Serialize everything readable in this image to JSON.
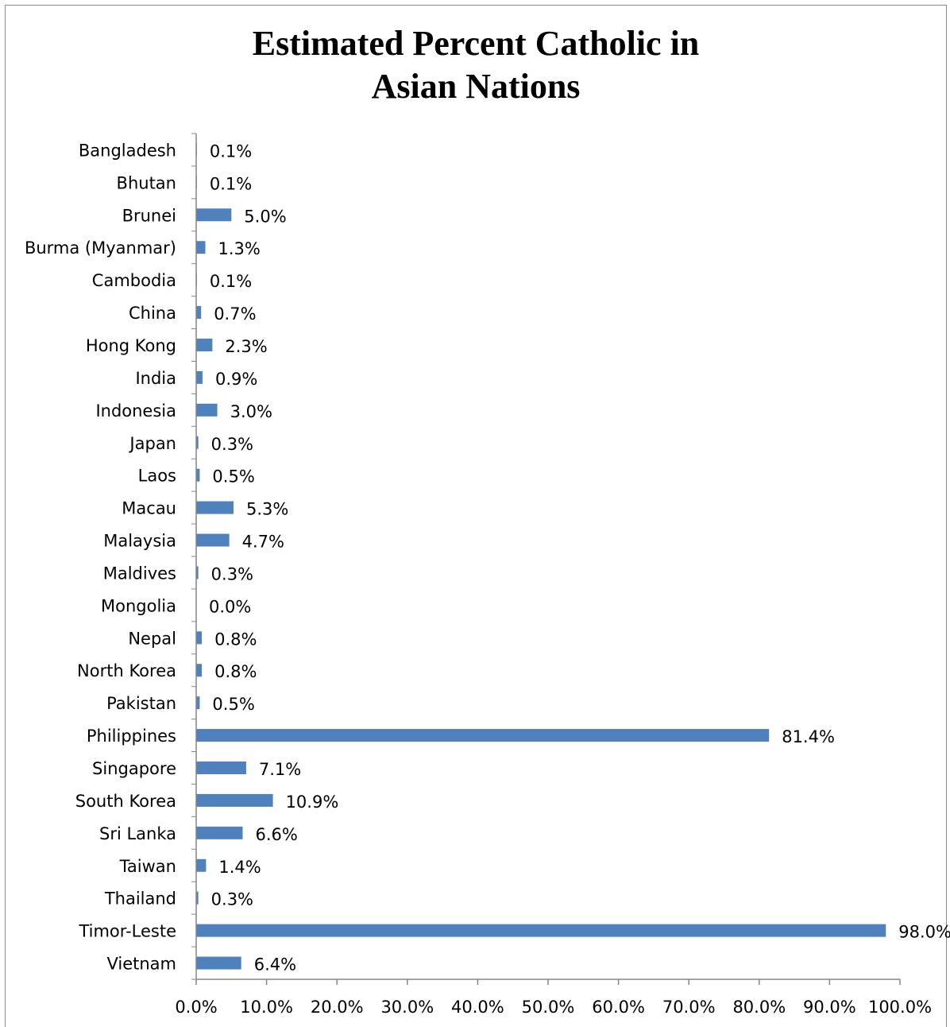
{
  "chart_data": {
    "type": "bar",
    "orientation": "horizontal",
    "title": "Estimated Percent Catholic in Asian Nations",
    "title_lines": [
      "Estimated Percent Catholic in",
      "Asian Nations"
    ],
    "xlabel": "",
    "ylabel": "",
    "xlim": [
      0,
      100
    ],
    "grid": false,
    "legend": "none",
    "bar_color": "#4F81BD",
    "categories": [
      "Bangladesh",
      "Bhutan",
      "Brunei",
      "Burma (Myanmar)",
      "Cambodia",
      "China",
      "Hong Kong",
      "India",
      "Indonesia",
      "Japan",
      "Laos",
      "Macau",
      "Malaysia",
      "Maldives",
      "Mongolia",
      "Nepal",
      "North Korea",
      "Pakistan",
      "Philippines",
      "Singapore",
      "South Korea",
      "Sri Lanka",
      "Taiwan",
      "Thailand",
      "Timor-Leste",
      "Vietnam"
    ],
    "values": [
      0.1,
      0.1,
      5.0,
      1.3,
      0.1,
      0.7,
      2.3,
      0.9,
      3.0,
      0.3,
      0.5,
      5.3,
      4.7,
      0.3,
      0.0,
      0.8,
      0.8,
      0.5,
      81.4,
      7.1,
      10.9,
      6.6,
      1.4,
      0.3,
      98.0,
      6.4
    ],
    "data_labels": [
      "0.1%",
      "0.1%",
      "5.0%",
      "1.3%",
      "0.1%",
      "0.7%",
      "2.3%",
      "0.9%",
      "3.0%",
      "0.3%",
      "0.5%",
      "5.3%",
      "4.7%",
      "0.3%",
      "0.0%",
      "0.8%",
      "0.8%",
      "0.5%",
      "81.4%",
      "7.1%",
      "10.9%",
      "6.6%",
      "1.4%",
      "0.3%",
      "98.0%",
      "6.4%"
    ],
    "x_ticks": [
      0,
      10,
      20,
      30,
      40,
      50,
      60,
      70,
      80,
      90,
      100
    ],
    "x_tick_labels": [
      "0.0%",
      "10.0%",
      "20.0%",
      "30.0%",
      "40.0%",
      "50.0%",
      "60.0%",
      "70.0%",
      "80.0%",
      "90.0%",
      "100.0%"
    ]
  }
}
